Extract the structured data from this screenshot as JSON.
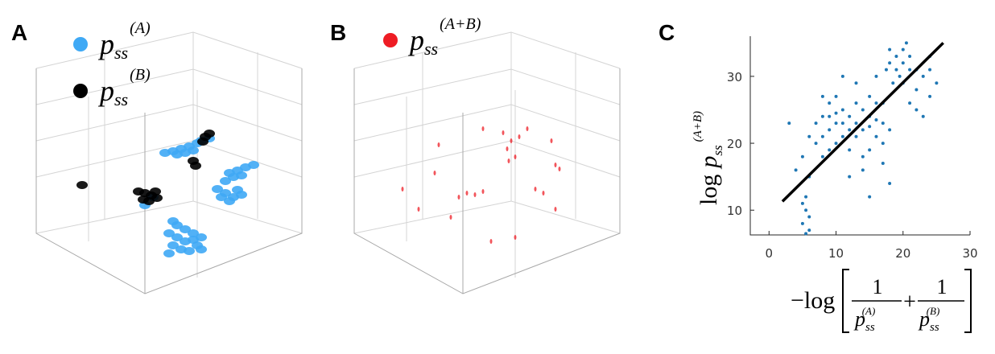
{
  "chart_data": [
    {
      "type": "scatter3d",
      "panel": "A",
      "xlim": [
        0,
        340
      ],
      "ylim": [
        0,
        330
      ],
      "series": [
        {
          "name": "p",
          "subscript": "ss",
          "superscript": "(A)",
          "color": "#3fa9f5",
          "x": [
            165,
            175,
            185,
            195,
            205,
            210,
            180,
            200,
            220,
            190,
            245,
            255,
            265,
            275,
            250,
            260,
            240,
            230,
            240,
            250,
            260,
            245,
            235,
            255,
            170,
            180,
            190,
            200,
            210,
            175,
            185,
            195,
            205,
            175,
            180,
            190,
            200,
            170,
            210,
            140,
            150
          ],
          "y": [
            180,
            182,
            185,
            188,
            192,
            195,
            178,
            183,
            198,
            180,
            155,
            158,
            162,
            165,
            150,
            152,
            145,
            135,
            130,
            125,
            128,
            120,
            125,
            134,
            80,
            75,
            70,
            72,
            75,
            65,
            60,
            58,
            65,
            95,
            90,
            85,
            80,
            55,
            60,
            115,
            125
          ]
        },
        {
          "name": "p",
          "subscript": "ss",
          "superscript": "(B)",
          "color": "#000000",
          "x": [
            132,
            140,
            148,
            155,
            138,
            145,
            153,
            200,
            203,
            215,
            220,
            212,
            62
          ],
          "y": [
            132,
            130,
            127,
            124,
            122,
            120,
            132,
            170,
            164,
            200,
            204,
            194,
            140
          ]
        }
      ]
    },
    {
      "type": "scatter3d",
      "panel": "B",
      "xlim": [
        0,
        340
      ],
      "ylim": [
        0,
        330
      ],
      "series": [
        {
          "name": "p",
          "subscript": "ss",
          "superscript": "(A+B)",
          "color": "#ee1c24",
          "x": [
            185,
            195,
            205,
            215,
            190,
            192,
            200,
            130,
            140,
            150,
            160,
            250,
            255,
            225,
            235,
            105,
            80,
            60,
            120,
            170,
            200,
            160,
            250,
            245,
            100
          ],
          "y": [
            205,
            195,
            200,
            210,
            185,
            170,
            175,
            125,
            130,
            128,
            132,
            165,
            160,
            135,
            130,
            190,
            110,
            135,
            100,
            70,
            75,
            210,
            110,
            195,
            155
          ]
        }
      ]
    },
    {
      "type": "scatter",
      "panel": "C",
      "xlim": [
        -2.8,
        30
      ],
      "ylim": [
        6.3,
        36
      ],
      "xticks": [
        0,
        10,
        20,
        30
      ],
      "yticks": [
        10,
        20,
        30
      ],
      "xlabel": {
        "prefix": "−log",
        "num1": "1",
        "den1": "p",
        "den1_sub": "ss",
        "den1_sup": "(A)",
        "plus": "+",
        "num2": "1",
        "den2": "p",
        "den2_sub": "ss",
        "den2_sup": "(B)"
      },
      "ylabel": {
        "prefix": "log",
        "base": "p",
        "sub": "ss",
        "sup": "(A+B)"
      },
      "series": [
        {
          "color": "#1f77b4",
          "x": [
            8,
            9,
            10,
            11,
            12,
            9,
            10,
            11,
            12,
            8,
            9,
            10,
            11,
            13,
            7,
            8,
            12,
            13,
            9,
            10,
            14,
            15,
            16,
            17,
            15,
            16,
            14,
            17,
            15,
            16,
            14,
            17,
            18,
            15,
            13,
            18,
            19,
            20,
            19,
            18,
            20,
            21,
            19.5,
            18.5,
            21,
            20.5,
            22,
            17.5,
            22,
            23,
            24,
            22,
            24,
            23,
            21,
            24,
            25,
            20,
            5.5,
            5,
            6,
            5.5,
            6,
            5,
            5.5,
            4,
            5,
            6,
            7,
            3,
            12,
            14,
            15,
            11,
            13,
            16,
            17,
            18,
            8,
            6
          ],
          "y": [
            24,
            22,
            23,
            25,
            22,
            26,
            20,
            21,
            24,
            21,
            19,
            27,
            23,
            23,
            23,
            27,
            19,
            26,
            24,
            24.5,
            22,
            24,
            21,
            23,
            19,
            26,
            25,
            20,
            22.5,
            23.5,
            18,
            26,
            22,
            27,
            21,
            32,
            33,
            32,
            31,
            34,
            34,
            31,
            30,
            29,
            33,
            35,
            31,
            31,
            28,
            30,
            27,
            25,
            31,
            24,
            26,
            33,
            29,
            29,
            10,
            8,
            9,
            12,
            7,
            11,
            6.5,
            16,
            18,
            15,
            20,
            23,
            15,
            16,
            12,
            30,
            29,
            30,
            17,
            14,
            18,
            21
          ]
        }
      ],
      "fit": {
        "color": "#000000",
        "x": [
          2,
          26
        ],
        "y": [
          11.3,
          35
        ]
      }
    }
  ]
}
